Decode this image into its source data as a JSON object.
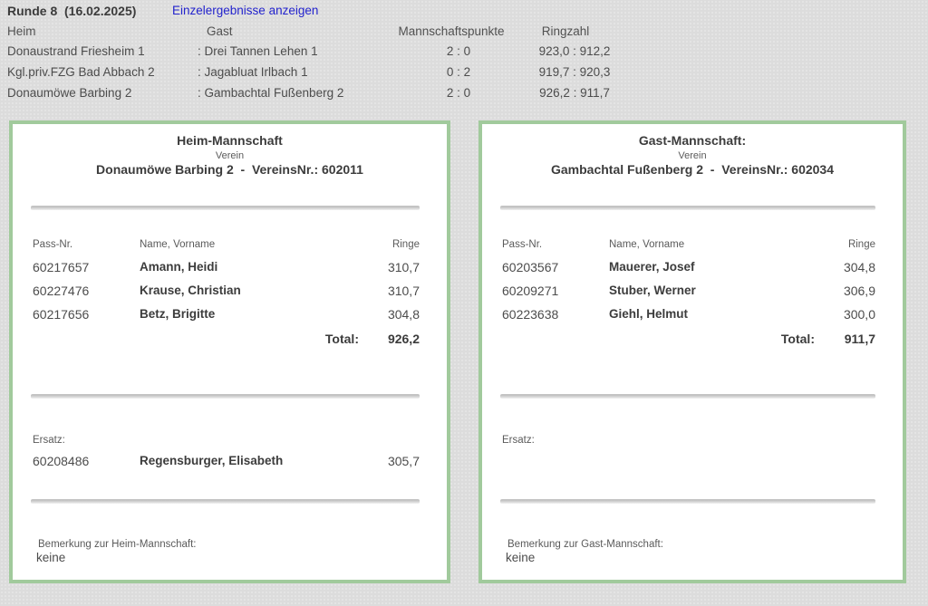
{
  "colors": {
    "accent_green": "#a1ca9c",
    "link_blue": "#2323cd",
    "page_background": "#dcdcdc"
  },
  "header": {
    "round_label": "Runde 8  (16.02.2025)",
    "single_results_link": "Einzelergebnisse anzeigen"
  },
  "results_table": {
    "columns": {
      "home": "Heim",
      "guest": "Gast",
      "points": "Mannschaftspunkte",
      "rings": "Ringzahl"
    },
    "rows": [
      {
        "home": "Donaustrand Friesheim 1",
        "guest": ": Drei Tannen Lehen 1",
        "points": "2 : 0",
        "rings": "923,0 : 912,2"
      },
      {
        "home": "Kgl.priv.FZG Bad Abbach 2",
        "guest": ": Jagabluat Irlbach 1",
        "points": "0 : 2",
        "rings": "919,7 : 920,3"
      },
      {
        "home": "Donaumöwe Barbing 2",
        "guest": ": Gambachtal Fußenberg 2",
        "points": "2 : 0",
        "rings": "926,2 : 911,7"
      }
    ]
  },
  "home_box": {
    "title": "Heim-Mannschaft",
    "verein_label": "Verein",
    "team_line": "Donaumöwe Barbing 2  -  VereinsNr.: 602011",
    "col_pass": "Pass-Nr.",
    "col_name": "Name, Vorname",
    "col_rings": "Ringe",
    "players": [
      {
        "pass": "60217657",
        "name": "Amann, Heidi",
        "rings": "310,7"
      },
      {
        "pass": "60227476",
        "name": "Krause, Christian",
        "rings": "310,7"
      },
      {
        "pass": "60217656",
        "name": "Betz, Brigitte",
        "rings": "304,8"
      }
    ],
    "total_label": "Total:",
    "total_value": "926,2",
    "ersatz_label": "Ersatz:",
    "ersatz": {
      "pass": "60208486",
      "name": "Regensburger, Elisabeth",
      "rings": "305,7"
    },
    "remark_label": "Bemerkung zur Heim-Mannschaft:",
    "remark_value": "keine"
  },
  "guest_box": {
    "title": "Gast-Mannschaft:",
    "verein_label": "Verein",
    "team_line": "Gambachtal Fußenberg 2  -  VereinsNr.: 602034",
    "col_pass": "Pass-Nr.",
    "col_name": "Name, Vorname",
    "col_rings": "Ringe",
    "players": [
      {
        "pass": "60203567",
        "name": "Mauerer, Josef",
        "rings": "304,8"
      },
      {
        "pass": "60209271",
        "name": "Stuber, Werner",
        "rings": "306,9"
      },
      {
        "pass": "60223638",
        "name": "Giehl, Helmut",
        "rings": "300,0"
      }
    ],
    "total_label": "Total:",
    "total_value": "911,7",
    "ersatz_label": "Ersatz:",
    "ersatz": null,
    "remark_label": "Bemerkung zur Gast-Mannschaft:",
    "remark_value": "keine"
  }
}
